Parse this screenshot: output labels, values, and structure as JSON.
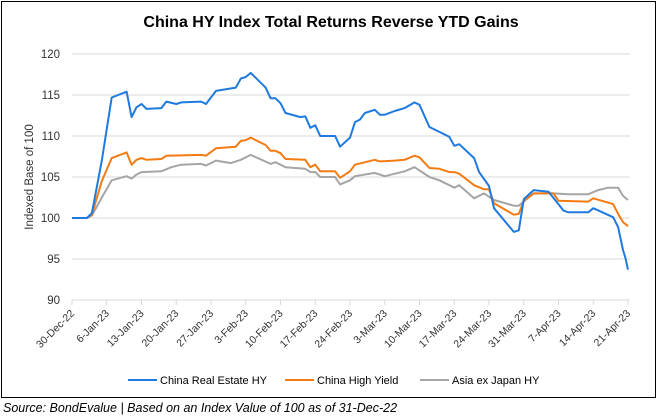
{
  "chart_data": {
    "type": "line",
    "title": "China HY Index Total Returns Reverse YTD Gains",
    "xlabel": "",
    "ylabel": "Indexed Base of 100",
    "ylim": [
      90,
      120
    ],
    "yticks": [
      90,
      95,
      100,
      105,
      110,
      115,
      120
    ],
    "xlim": [
      "2022-12-30",
      "2023-04-21"
    ],
    "xticks": [
      {
        "date": "2022-12-30",
        "label": "30-Dec-22"
      },
      {
        "date": "2023-01-06",
        "label": "6-Jan-23"
      },
      {
        "date": "2023-01-13",
        "label": "13-Jan-23"
      },
      {
        "date": "2023-01-20",
        "label": "20-Jan-23"
      },
      {
        "date": "2023-01-27",
        "label": "27-Jan-23"
      },
      {
        "date": "2023-02-03",
        "label": "3-Feb-23"
      },
      {
        "date": "2023-02-10",
        "label": "10-Feb-23"
      },
      {
        "date": "2023-02-17",
        "label": "17-Feb-23"
      },
      {
        "date": "2023-02-24",
        "label": "24-Feb-23"
      },
      {
        "date": "2023-03-03",
        "label": "3-Mar-23"
      },
      {
        "date": "2023-03-10",
        "label": "10-Mar-23"
      },
      {
        "date": "2023-03-17",
        "label": "17-Mar-23"
      },
      {
        "date": "2023-03-24",
        "label": "24-Mar-23"
      },
      {
        "date": "2023-03-31",
        "label": "31-Mar-23"
      },
      {
        "date": "2023-04-07",
        "label": "7-Apr-23"
      },
      {
        "date": "2023-04-14",
        "label": "14-Apr-23"
      },
      {
        "date": "2023-04-21",
        "label": "21-Apr-23"
      }
    ],
    "grid": true,
    "legend_position": "bottom",
    "series": [
      {
        "name": "China Real Estate HY",
        "color": "#1f7ae0",
        "points": [
          [
            "2022-12-30",
            100
          ],
          [
            "2023-01-02",
            100
          ],
          [
            "2023-01-03",
            100.6
          ],
          [
            "2023-01-05",
            107
          ],
          [
            "2023-01-07",
            114.7
          ],
          [
            "2023-01-10",
            115.4
          ],
          [
            "2023-01-11",
            112.3
          ],
          [
            "2023-01-12",
            113.5
          ],
          [
            "2023-01-13",
            113.9
          ],
          [
            "2023-01-14",
            113.3
          ],
          [
            "2023-01-17",
            113.4
          ],
          [
            "2023-01-18",
            114.2
          ],
          [
            "2023-01-20",
            113.9
          ],
          [
            "2023-01-21",
            114.1
          ],
          [
            "2023-01-25",
            114.2
          ],
          [
            "2023-01-26",
            113.9
          ],
          [
            "2023-01-28",
            115.5
          ],
          [
            "2023-02-01",
            115.9
          ],
          [
            "2023-02-02",
            117.0
          ],
          [
            "2023-02-03",
            117.2
          ],
          [
            "2023-02-04",
            117.7
          ],
          [
            "2023-02-07",
            115.9
          ],
          [
            "2023-02-08",
            114.6
          ],
          [
            "2023-02-09",
            114.6
          ],
          [
            "2023-02-10",
            114.0
          ],
          [
            "2023-02-11",
            112.8
          ],
          [
            "2023-02-14",
            112.3
          ],
          [
            "2023-02-15",
            112.4
          ],
          [
            "2023-02-16",
            111.0
          ],
          [
            "2023-02-17",
            111.3
          ],
          [
            "2023-02-18",
            110.0
          ],
          [
            "2023-02-21",
            110.0
          ],
          [
            "2023-02-22",
            108.7
          ],
          [
            "2023-02-24",
            109.8
          ],
          [
            "2023-02-25",
            111.7
          ],
          [
            "2023-02-26",
            112.0
          ],
          [
            "2023-02-27",
            112.8
          ],
          [
            "2023-03-01",
            113.2
          ],
          [
            "2023-03-02",
            112.6
          ],
          [
            "2023-03-03",
            112.6
          ],
          [
            "2023-03-05",
            113.05
          ],
          [
            "2023-03-07",
            113.4
          ],
          [
            "2023-03-09",
            114.1
          ],
          [
            "2023-03-10",
            113.8
          ],
          [
            "2023-03-12",
            111.1
          ],
          [
            "2023-03-14",
            110.5
          ],
          [
            "2023-03-16",
            109.9
          ],
          [
            "2023-03-17",
            108.8
          ],
          [
            "2023-03-18",
            109.0
          ],
          [
            "2023-03-21",
            107.3
          ],
          [
            "2023-03-22",
            105.6
          ],
          [
            "2023-03-24",
            103.9
          ],
          [
            "2023-03-25",
            101.2
          ],
          [
            "2023-03-29",
            98.3
          ],
          [
            "2023-03-30",
            98.5
          ],
          [
            "2023-03-31",
            102.3
          ],
          [
            "2023-04-02",
            103.4
          ],
          [
            "2023-04-05",
            103.2
          ],
          [
            "2023-04-08",
            100.9
          ],
          [
            "2023-04-09",
            100.7
          ],
          [
            "2023-04-13",
            100.7
          ],
          [
            "2023-04-14",
            101.2
          ],
          [
            "2023-04-18",
            100.1
          ],
          [
            "2023-04-19",
            98.9
          ],
          [
            "2023-04-20",
            96.1
          ],
          [
            "2023-04-20.5",
            95.1
          ],
          [
            "2023-04-21",
            93.7
          ]
        ]
      },
      {
        "name": "China High Yield",
        "color": "#f47b12",
        "points": [
          [
            "2022-12-30",
            100
          ],
          [
            "2023-01-02",
            100
          ],
          [
            "2023-01-03",
            100.4
          ],
          [
            "2023-01-05",
            104.5
          ],
          [
            "2023-01-07",
            107.3
          ],
          [
            "2023-01-10",
            108.0
          ],
          [
            "2023-01-11",
            106.5
          ],
          [
            "2023-01-12",
            107.1
          ],
          [
            "2023-01-13",
            107.3
          ],
          [
            "2023-01-14",
            107.1
          ],
          [
            "2023-01-17",
            107.2
          ],
          [
            "2023-01-18",
            107.6
          ],
          [
            "2023-01-25",
            107.7
          ],
          [
            "2023-01-26",
            107.6
          ],
          [
            "2023-01-28",
            108.5
          ],
          [
            "2023-02-01",
            108.7
          ],
          [
            "2023-02-02",
            109.4
          ],
          [
            "2023-02-03",
            109.5
          ],
          [
            "2023-02-04",
            109.8
          ],
          [
            "2023-02-07",
            108.9
          ],
          [
            "2023-02-08",
            108.2
          ],
          [
            "2023-02-09",
            108.2
          ],
          [
            "2023-02-10",
            107.9
          ],
          [
            "2023-02-11",
            107.2
          ],
          [
            "2023-02-15",
            107.1
          ],
          [
            "2023-02-16",
            106.2
          ],
          [
            "2023-02-17",
            106.5
          ],
          [
            "2023-02-18",
            105.7
          ],
          [
            "2023-02-21",
            105.7
          ],
          [
            "2023-02-22",
            104.9
          ],
          [
            "2023-02-24",
            105.7
          ],
          [
            "2023-02-25",
            106.5
          ],
          [
            "2023-03-01",
            107.1
          ],
          [
            "2023-03-02",
            106.9
          ],
          [
            "2023-03-05",
            107.0
          ],
          [
            "2023-03-07",
            107.1
          ],
          [
            "2023-03-09",
            107.6
          ],
          [
            "2023-03-10",
            107.4
          ],
          [
            "2023-03-12",
            106.1
          ],
          [
            "2023-03-14",
            106.0
          ],
          [
            "2023-03-16",
            105.6
          ],
          [
            "2023-03-17",
            105.6
          ],
          [
            "2023-03-18",
            105.4
          ],
          [
            "2023-03-21",
            104.0
          ],
          [
            "2023-03-23",
            103.5
          ],
          [
            "2023-03-24",
            103.5
          ],
          [
            "2023-03-25",
            101.8
          ],
          [
            "2023-03-29",
            100.4
          ],
          [
            "2023-03-30",
            100.5
          ],
          [
            "2023-03-31",
            102.1
          ],
          [
            "2023-04-02",
            103.0
          ],
          [
            "2023-04-06",
            103.0
          ],
          [
            "2023-04-07",
            102.1
          ],
          [
            "2023-04-13",
            102.0
          ],
          [
            "2023-04-14",
            102.4
          ],
          [
            "2023-04-18",
            101.7
          ],
          [
            "2023-04-19",
            100.5
          ],
          [
            "2023-04-20",
            99.5
          ],
          [
            "2023-04-21",
            99.0
          ]
        ]
      },
      {
        "name": "Asia ex Japan HY",
        "color": "#a5a5a5",
        "points": [
          [
            "2022-12-30",
            100
          ],
          [
            "2023-01-02",
            100
          ],
          [
            "2023-01-03",
            100.3
          ],
          [
            "2023-01-05",
            102.5
          ],
          [
            "2023-01-07",
            104.6
          ],
          [
            "2023-01-10",
            105.1
          ],
          [
            "2023-01-11",
            104.8
          ],
          [
            "2023-01-12",
            105.3
          ],
          [
            "2023-01-13",
            105.6
          ],
          [
            "2023-01-17",
            105.7
          ],
          [
            "2023-01-19",
            106.2
          ],
          [
            "2023-01-21",
            106.5
          ],
          [
            "2023-01-25",
            106.6
          ],
          [
            "2023-01-26",
            106.4
          ],
          [
            "2023-01-28",
            107.0
          ],
          [
            "2023-01-31",
            106.7
          ],
          [
            "2023-02-02",
            107.1
          ],
          [
            "2023-02-04",
            107.7
          ],
          [
            "2023-02-08",
            106.6
          ],
          [
            "2023-02-09",
            106.8
          ],
          [
            "2023-02-11",
            106.2
          ],
          [
            "2023-02-15",
            106.0
          ],
          [
            "2023-02-16",
            105.6
          ],
          [
            "2023-02-17",
            105.6
          ],
          [
            "2023-02-18",
            105.0
          ],
          [
            "2023-02-21",
            105.0
          ],
          [
            "2023-02-22",
            104.1
          ],
          [
            "2023-02-24",
            104.6
          ],
          [
            "2023-02-25",
            105.1
          ],
          [
            "2023-03-01",
            105.5
          ],
          [
            "2023-03-03",
            105.1
          ],
          [
            "2023-03-07",
            105.7
          ],
          [
            "2023-03-09",
            106.2
          ],
          [
            "2023-03-12",
            105.0
          ],
          [
            "2023-03-14",
            104.6
          ],
          [
            "2023-03-16",
            104.0
          ],
          [
            "2023-03-17",
            103.7
          ],
          [
            "2023-03-18",
            104.0
          ],
          [
            "2023-03-21",
            102.4
          ],
          [
            "2023-03-23",
            103.0
          ],
          [
            "2023-03-25",
            102.2
          ],
          [
            "2023-03-29",
            101.5
          ],
          [
            "2023-03-30",
            101.5
          ],
          [
            "2023-04-02",
            103.0
          ],
          [
            "2023-04-06",
            103.0
          ],
          [
            "2023-04-09",
            102.9
          ],
          [
            "2023-04-13",
            102.9
          ],
          [
            "2023-04-15",
            103.4
          ],
          [
            "2023-04-17",
            103.7
          ],
          [
            "2023-04-19",
            103.7
          ],
          [
            "2023-04-20",
            102.7
          ],
          [
            "2023-04-21",
            102.2
          ]
        ]
      }
    ]
  },
  "source_note": "Source: BondEvalue | Based on an Index Value of  100 as of 31-Dec-22"
}
